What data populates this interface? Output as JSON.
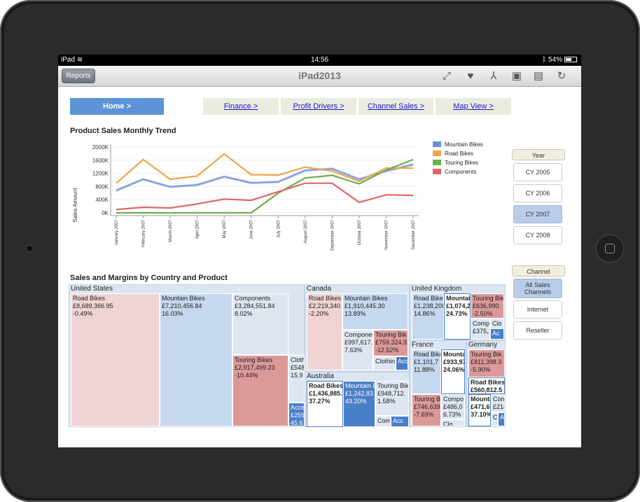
{
  "status_bar": {
    "device": "iPad",
    "time": "14:56",
    "battery": "54%",
    "battery_level": 0.54
  },
  "toolbar": {
    "reports_label": "Reports",
    "title": "iPad2013",
    "icons": [
      "fullscreen-icon",
      "favorite-icon",
      "pdf-icon",
      "save-icon",
      "document-icon",
      "refresh-icon"
    ]
  },
  "nav": {
    "home": "Home  >",
    "finance": "Finance  >",
    "profit": "Profit Drivers  >",
    "channel": "Channel Sales >",
    "map": "Map View >"
  },
  "line_chart_title": "Product Sales Monthly Trend",
  "treemap_title": "Sales and Margins by Country and Product",
  "year_filter": {
    "label": "Year",
    "options": [
      "CY 2005",
      "CY 2006",
      "CY 2007",
      "CY 2008"
    ],
    "selected": "CY 2007"
  },
  "channel_filter": {
    "label": "Channel",
    "options": [
      "All Sales Channels",
      "Internet",
      "Reseller"
    ],
    "selected": "All Sales Channels"
  },
  "colors": {
    "mountain": "#6b8fd6",
    "road": "#f4a24a",
    "touring": "#6ab04c",
    "components": "#e06666"
  },
  "chart_data": {
    "type": "line",
    "ylabel": "Sales Amount",
    "ylim": [
      0,
      2000000
    ],
    "yticks": [
      "2000K",
      "1600K",
      "1200K",
      "800K",
      "400K",
      "0K"
    ],
    "categories": [
      "January 2007",
      "February 2007",
      "March 2007",
      "April 2007",
      "May 2007",
      "June 2007",
      "July 2007",
      "August 2007",
      "September 2007",
      "October 2007",
      "November 2007",
      "December 2007"
    ],
    "legend_position": "top-right",
    "series": [
      {
        "name": "Mountain Bikes",
        "color": "#6b8fd6",
        "values": [
          680000,
          1020000,
          790000,
          850000,
          1100000,
          910000,
          940000,
          1290000,
          1340000,
          1020000,
          1270000,
          1470000
        ]
      },
      {
        "name": "Road Bikes",
        "color": "#f4a24a",
        "values": [
          900000,
          1620000,
          1020000,
          1120000,
          1790000,
          1160000,
          1150000,
          1390000,
          1270000,
          960000,
          1360000,
          1360000
        ]
      },
      {
        "name": "Touring Bikes",
        "color": "#6ab04c",
        "values": [
          0,
          0,
          0,
          0,
          0,
          0,
          600000,
          1060000,
          1140000,
          880000,
          1300000,
          1620000
        ]
      },
      {
        "name": "Components",
        "color": "#e06666",
        "values": [
          100000,
          170000,
          150000,
          270000,
          420000,
          380000,
          640000,
          900000,
          900000,
          320000,
          550000,
          530000
        ]
      }
    ]
  },
  "treemap": {
    "countries": [
      {
        "name": "United States",
        "cells": [
          {
            "product": "Road Bikes",
            "sales": "£8,689,366.95",
            "margin": "-0.49%"
          },
          {
            "product": "Mountain Bikes",
            "sales": "£7,210,456.84",
            "margin": "16.03%"
          },
          {
            "product": "Components",
            "sales": "£3,284,551.84",
            "margin": "8.02%"
          },
          {
            "product": "Touring Bikes",
            "sales": "£2,917,499.23",
            "margin": "-10.44%"
          },
          {
            "product": "Cloth",
            "sales": "£548",
            "margin": "15.9"
          },
          {
            "product": "Acces",
            "sales": "£259",
            "margin": "45.6"
          }
        ]
      },
      {
        "name": "Canada",
        "cells": [
          {
            "product": "Road Bikes",
            "sales": "£2,219,340.",
            "margin": "-2.20%"
          },
          {
            "product": "Mountain Bikes",
            "sales": "£1,910,445.30",
            "margin": "13.89%"
          },
          {
            "product": "Componen",
            "sales": "£997,617.4",
            "margin": "7.63%"
          },
          {
            "product": "Touring Bik",
            "sales": "£759,324.9",
            "margin": "-12.52%"
          },
          {
            "product": "Clothin",
            "sales": "",
            "margin": ""
          },
          {
            "product": "Acc",
            "sales": "",
            "margin": ""
          }
        ]
      },
      {
        "name": "United Kingdom",
        "cells": [
          {
            "product": "Road Bikes",
            "sales": "£1,238,208",
            "margin": "14.86%"
          },
          {
            "product": "Mountain",
            "sales": "£1,074,2",
            "margin": "24.73%"
          },
          {
            "product": "Touring Bik",
            "sales": "£636,990.",
            "margin": "-2.50%"
          },
          {
            "product": "Compo",
            "sales": "£375,1",
            "margin": ""
          },
          {
            "product": "Clo",
            "sales": "",
            "margin": ""
          },
          {
            "product": "Ac",
            "sales": "",
            "margin": ""
          }
        ]
      },
      {
        "name": "France",
        "cells": [
          {
            "product": "Road Bike",
            "sales": "£1,101,7",
            "margin": "11.88%"
          },
          {
            "product": "Mountai",
            "sales": "£933,97",
            "margin": "24.06%"
          },
          {
            "product": "Touring Bi",
            "sales": "£746,639",
            "margin": "-7.69%"
          },
          {
            "product": "Compo",
            "sales": "£486,0",
            "margin": "6.73%"
          },
          {
            "product": "Clo",
            "sales": "",
            "margin": ""
          }
        ]
      },
      {
        "name": "Germany",
        "cells": [
          {
            "product": "Touring Bik",
            "sales": "£811,398.3",
            "margin": "-5.90%"
          },
          {
            "product": "Road Bikes",
            "sales": "£560,812.5",
            "margin": ""
          },
          {
            "product": "Mounta",
            "sales": "£471,6",
            "margin": "37.10%"
          },
          {
            "product": "Com",
            "sales": "£214",
            "margin": ""
          },
          {
            "product": "C",
            "sales": "",
            "margin": ""
          },
          {
            "product": "Ac",
            "sales": "",
            "margin": ""
          }
        ]
      },
      {
        "name": "Australia",
        "cells": [
          {
            "product": "Road Bikes",
            "sales": "£1,436,885.",
            "margin": "37.27%"
          },
          {
            "product": "Mountain B",
            "sales": "£1,242,83",
            "margin": "43.20%"
          },
          {
            "product": "Touring Bik",
            "sales": "£948,712.",
            "margin": "1.58%"
          },
          {
            "product": "Compo",
            "sales": "",
            "margin": ""
          },
          {
            "product": "Acc",
            "sales": "",
            "margin": ""
          }
        ]
      }
    ]
  }
}
